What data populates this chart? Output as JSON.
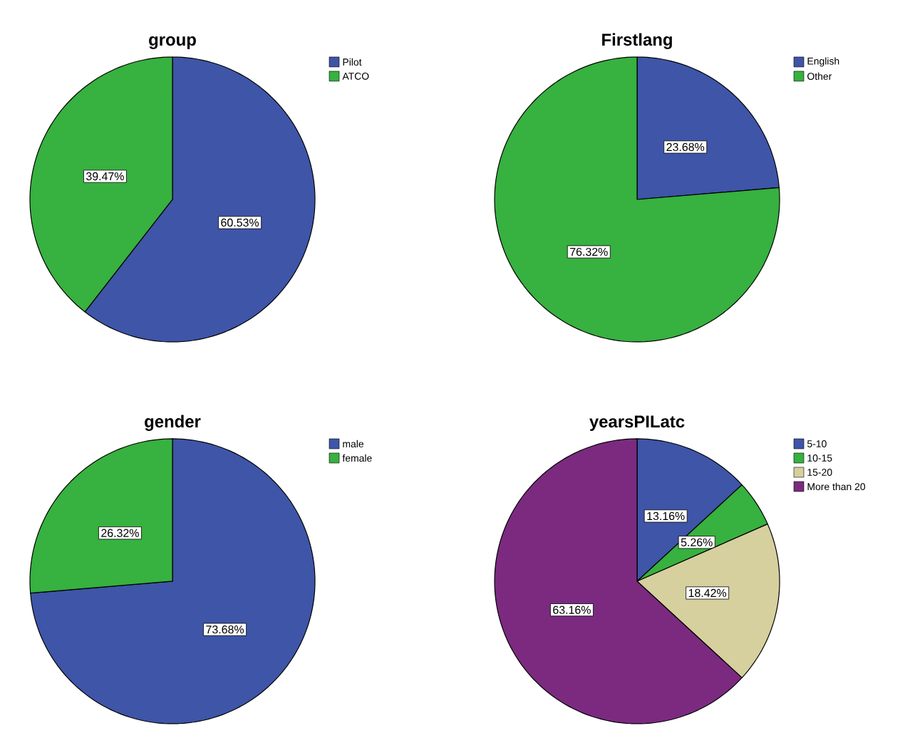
{
  "chart_data": [
    {
      "type": "pie",
      "title": "group",
      "categories": [
        "Pilot",
        "ATCO"
      ],
      "values": [
        60.53,
        39.47
      ],
      "colors": [
        "#3e55a8",
        "#37b13f"
      ],
      "value_labels": [
        "60.53%",
        "39.47%"
      ],
      "legend": "top right"
    },
    {
      "type": "pie",
      "title": "Firstlang",
      "categories": [
        "English",
        "Other"
      ],
      "values": [
        23.68,
        76.32
      ],
      "colors": [
        "#3e55a8",
        "#37b13f"
      ],
      "value_labels": [
        "23.68%",
        "76.32%"
      ],
      "legend": "top right"
    },
    {
      "type": "pie",
      "title": "gender",
      "categories": [
        "male",
        "female"
      ],
      "values": [
        73.68,
        26.32
      ],
      "colors": [
        "#3e55a8",
        "#37b13f"
      ],
      "value_labels": [
        "73.68%",
        "26.32%"
      ],
      "legend": "top right"
    },
    {
      "type": "pie",
      "title": "yearsPILatc",
      "categories": [
        "5-10",
        "10-15",
        "15-20",
        "More than 20"
      ],
      "values": [
        13.16,
        5.26,
        18.42,
        63.16
      ],
      "colors": [
        "#3e55a8",
        "#37b13f",
        "#d6cf9e",
        "#7b2a80"
      ],
      "value_labels": [
        "13.16%",
        "5.26%",
        "18.42%",
        "63.16%"
      ],
      "legend": "top right"
    }
  ]
}
